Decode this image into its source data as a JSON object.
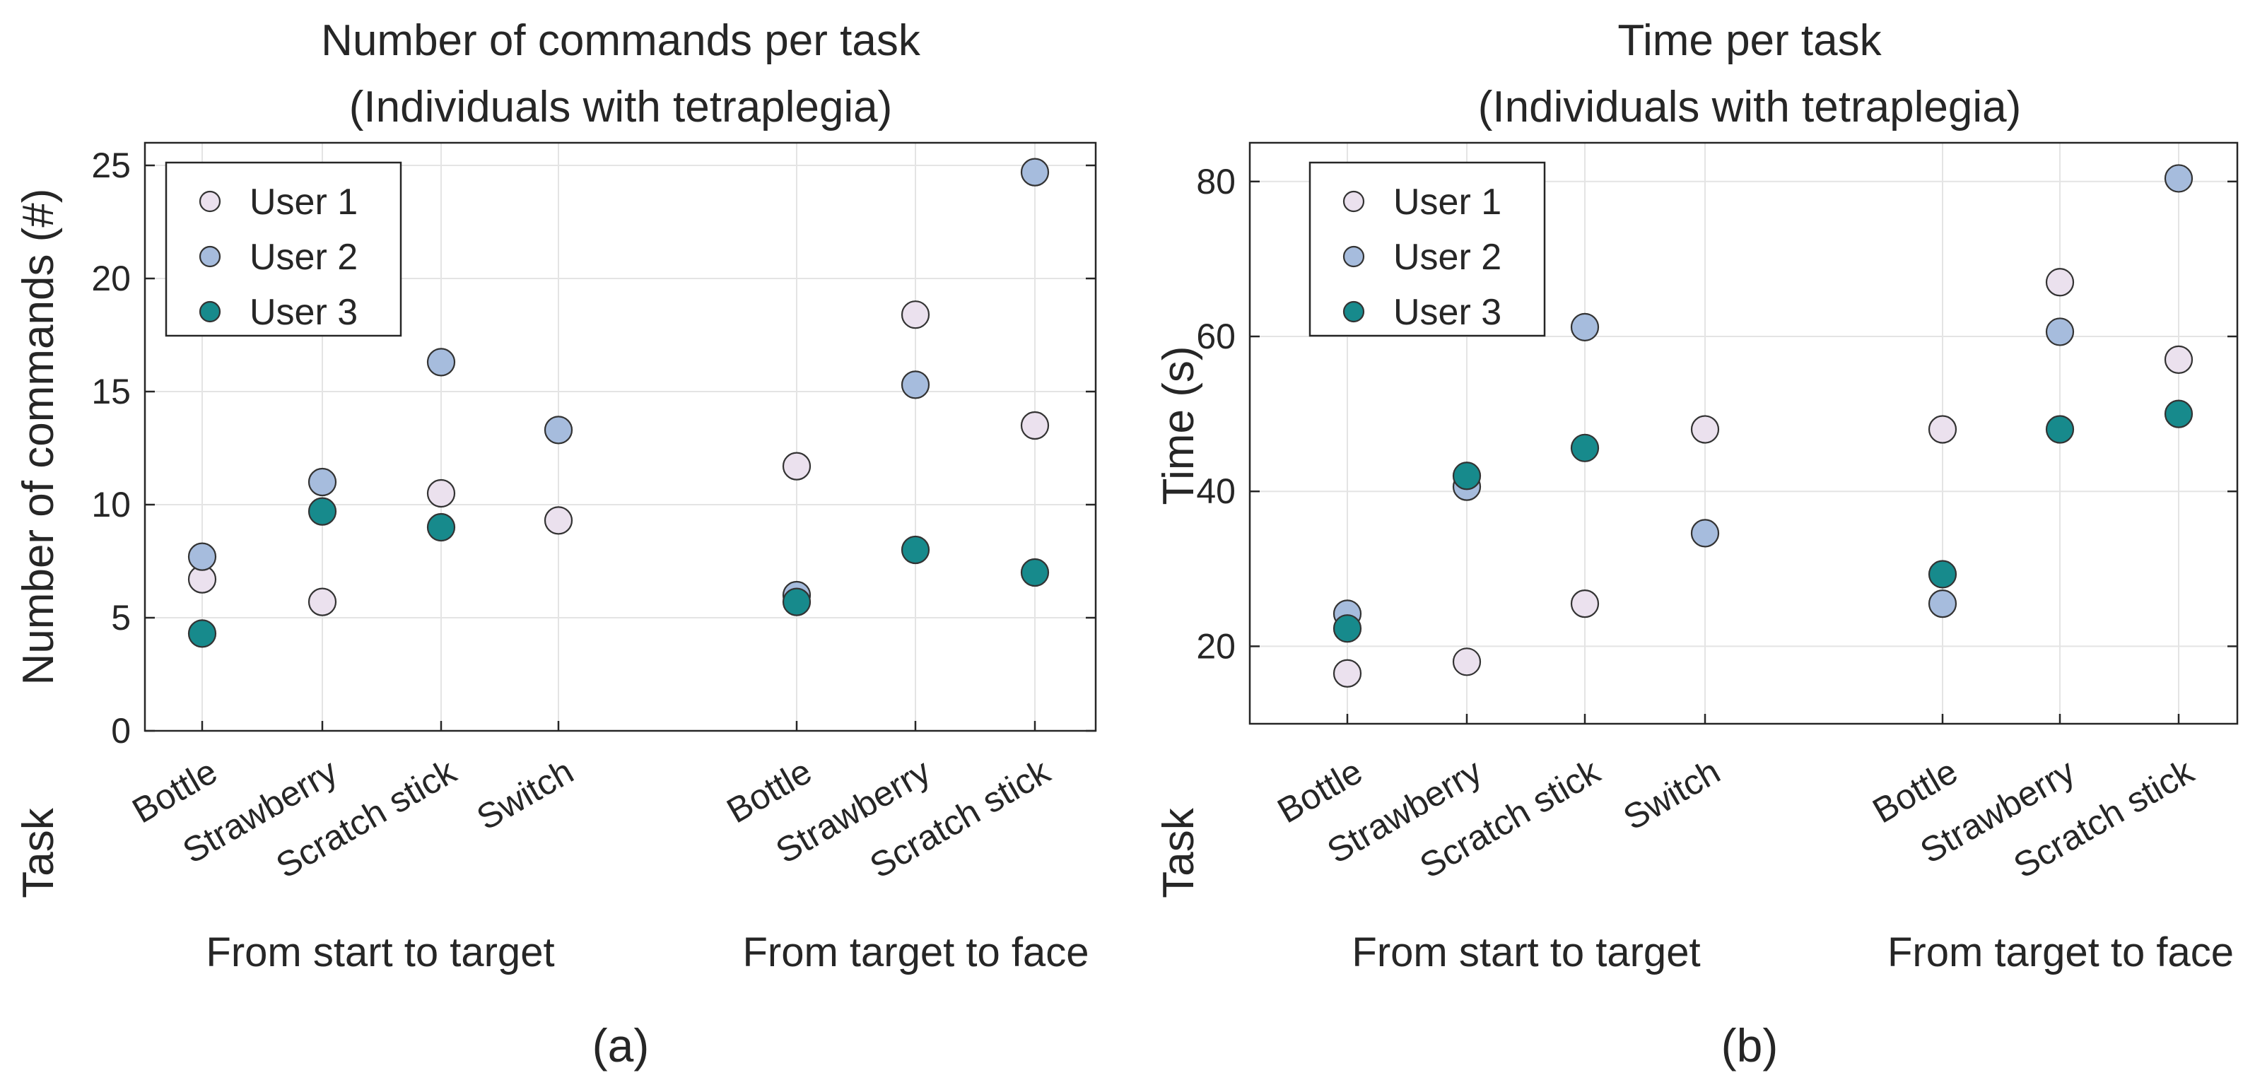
{
  "chart_data": [
    {
      "type": "scatter",
      "panel_label": "(a)",
      "title": [
        "Number of commands per task",
        "(Individuals with tetraplegia)"
      ],
      "ylabel": "Number of commands (#)",
      "xlabel": "Task",
      "ylim": [
        0,
        26
      ],
      "yticks": [
        0,
        5,
        10,
        15,
        20,
        25
      ],
      "grid": true,
      "legend_position": "top-left",
      "categories": [
        "Bottle",
        "Strawberry",
        "Scratch stick",
        "Switch",
        "",
        "Bottle",
        "Strawberry",
        "Scratch stick"
      ],
      "groups": [
        {
          "label": "From start to target",
          "categories": [
            0,
            1,
            2,
            3
          ]
        },
        {
          "label": "From target to face",
          "categories": [
            5,
            6,
            7
          ]
        }
      ],
      "series": [
        {
          "name": "User 1",
          "color": "#ebe1ee",
          "values": [
            6.7,
            5.7,
            10.5,
            9.3,
            null,
            11.7,
            18.4,
            13.5
          ]
        },
        {
          "name": "User 2",
          "color": "#a6bcdd",
          "values": [
            7.7,
            11.0,
            16.3,
            13.3,
            null,
            6.0,
            15.3,
            24.7
          ]
        },
        {
          "name": "User 3",
          "color": "#178a8c",
          "values": [
            4.3,
            9.7,
            9.0,
            null,
            null,
            5.7,
            8.0,
            7.0
          ]
        }
      ]
    },
    {
      "type": "scatter",
      "panel_label": "(b)",
      "title": [
        "Time per task",
        "(Individuals with tetraplegia)"
      ],
      "ylabel": "Time (s)",
      "xlabel": "Task",
      "ylim": [
        10,
        85
      ],
      "yticks": [
        20,
        40,
        60,
        80
      ],
      "grid": true,
      "legend_position": "top-left",
      "categories": [
        "Bottle",
        "Strawberry",
        "Scratch stick",
        "Switch",
        "",
        "Bottle",
        "Strawberry",
        "Scratch stick"
      ],
      "groups": [
        {
          "label": "From start to target",
          "categories": [
            0,
            1,
            2,
            3
          ]
        },
        {
          "label": "From target to face",
          "categories": [
            5,
            6,
            7
          ]
        }
      ],
      "series": [
        {
          "name": "User 1",
          "color": "#ebe1ee",
          "values": [
            16.5,
            18.0,
            25.5,
            48.0,
            null,
            48.0,
            67.0,
            57.0
          ]
        },
        {
          "name": "User 2",
          "color": "#a6bcdd",
          "values": [
            24.2,
            40.6,
            61.2,
            34.6,
            null,
            25.5,
            60.6,
            80.4
          ]
        },
        {
          "name": "User 3",
          "color": "#178a8c",
          "values": [
            22.3,
            42.0,
            45.6,
            null,
            null,
            29.3,
            48.0,
            50.0
          ]
        }
      ]
    }
  ]
}
